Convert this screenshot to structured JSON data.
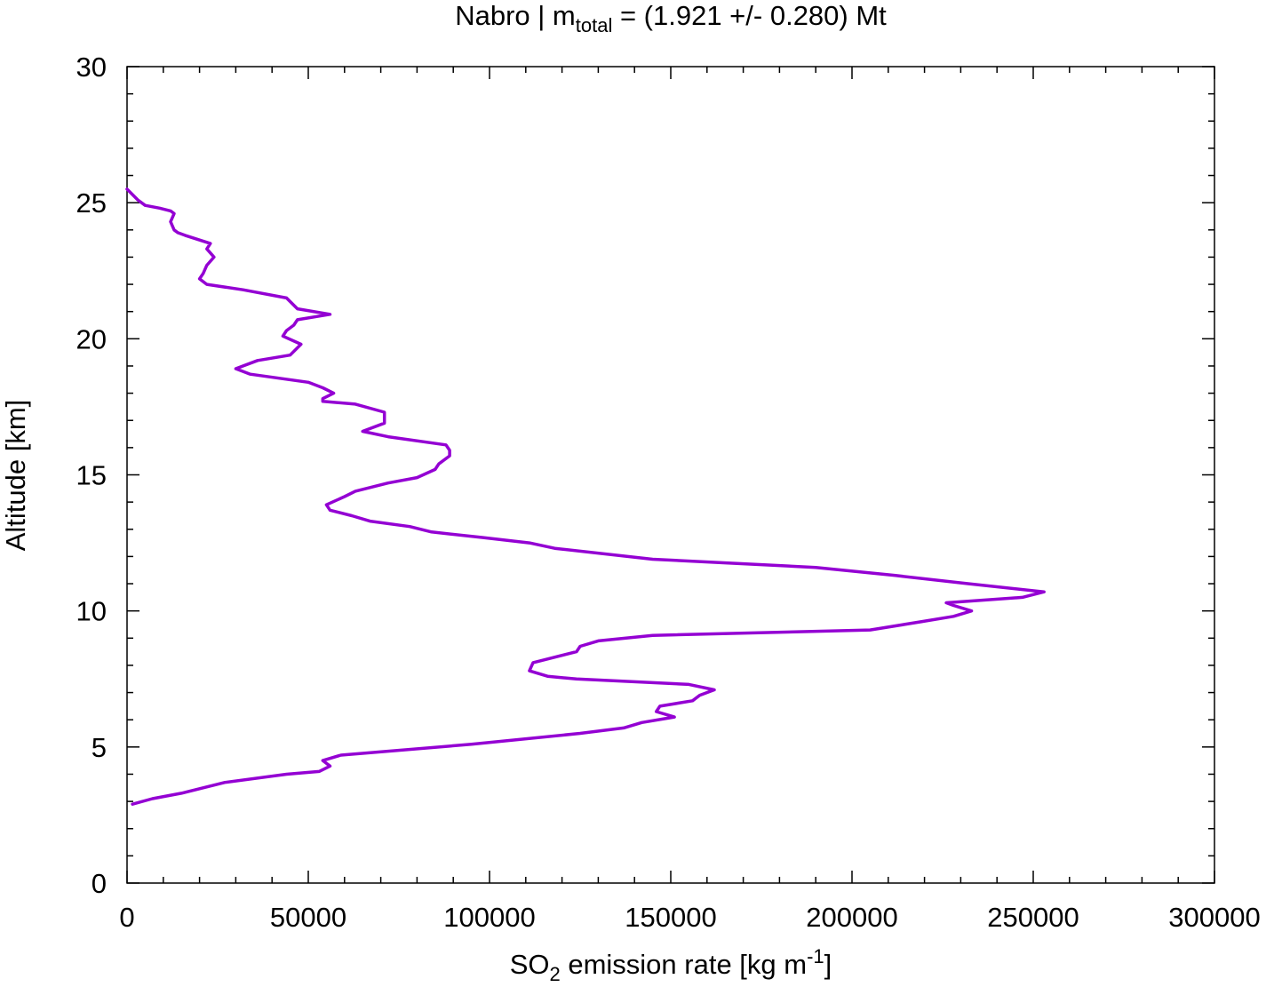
{
  "chart_data": {
    "type": "line",
    "title": {
      "prefix": "Nabro | m",
      "sub": "total",
      "suffix": " = (1.921 +/- 0.280) Mt"
    },
    "xlabel": {
      "pre": "SO",
      "sub": "2",
      "mid": " emission rate [kg m",
      "sup": "-1",
      "post": "]"
    },
    "ylabel": "Altitude [km]",
    "xlim": [
      0,
      300000
    ],
    "ylim": [
      0,
      30
    ],
    "xticks": [
      0,
      50000,
      100000,
      150000,
      200000,
      250000,
      300000
    ],
    "xtick_labels": [
      "0",
      "50000",
      "100000",
      "150000",
      "200000",
      "250000",
      "300000"
    ],
    "yticks": [
      0,
      5,
      10,
      15,
      20,
      25,
      30
    ],
    "ytick_labels": [
      "0",
      "5",
      "10",
      "15",
      "20",
      "25",
      "30"
    ],
    "grid": false,
    "legend": "none",
    "series": [
      {
        "color": "#9400d3",
        "points": [
          [
            1500,
            2.9
          ],
          [
            7000,
            3.1
          ],
          [
            15000,
            3.3
          ],
          [
            27000,
            3.7
          ],
          [
            44000,
            4.0
          ],
          [
            53000,
            4.1
          ],
          [
            56000,
            4.3
          ],
          [
            54000,
            4.5
          ],
          [
            59000,
            4.7
          ],
          [
            95000,
            5.1
          ],
          [
            125000,
            5.5
          ],
          [
            137000,
            5.7
          ],
          [
            142000,
            5.9
          ],
          [
            151000,
            6.1
          ],
          [
            146000,
            6.3
          ],
          [
            147000,
            6.5
          ],
          [
            156000,
            6.7
          ],
          [
            158000,
            6.9
          ],
          [
            162000,
            7.1
          ],
          [
            155000,
            7.3
          ],
          [
            124000,
            7.5
          ],
          [
            116000,
            7.6
          ],
          [
            111000,
            7.8
          ],
          [
            112000,
            8.1
          ],
          [
            124000,
            8.5
          ],
          [
            125000,
            8.7
          ],
          [
            130000,
            8.9
          ],
          [
            145000,
            9.1
          ],
          [
            205000,
            9.3
          ],
          [
            219000,
            9.6
          ],
          [
            228000,
            9.8
          ],
          [
            233000,
            10.0
          ],
          [
            228000,
            10.2
          ],
          [
            226000,
            10.3
          ],
          [
            247000,
            10.5
          ],
          [
            253000,
            10.7
          ],
          [
            232000,
            11.0
          ],
          [
            212000,
            11.3
          ],
          [
            190000,
            11.6
          ],
          [
            145000,
            11.9
          ],
          [
            118000,
            12.3
          ],
          [
            111000,
            12.5
          ],
          [
            98000,
            12.7
          ],
          [
            84000,
            12.9
          ],
          [
            78000,
            13.1
          ],
          [
            67000,
            13.3
          ],
          [
            62000,
            13.5
          ],
          [
            56000,
            13.7
          ],
          [
            55000,
            13.9
          ],
          [
            60000,
            14.2
          ],
          [
            63000,
            14.4
          ],
          [
            72000,
            14.7
          ],
          [
            80000,
            14.9
          ],
          [
            85000,
            15.2
          ],
          [
            86000,
            15.4
          ],
          [
            89000,
            15.7
          ],
          [
            89000,
            15.9
          ],
          [
            88000,
            16.1
          ],
          [
            72000,
            16.4
          ],
          [
            65000,
            16.6
          ],
          [
            71000,
            16.9
          ],
          [
            71000,
            17.1
          ],
          [
            71000,
            17.3
          ],
          [
            63000,
            17.6
          ],
          [
            54000,
            17.7
          ],
          [
            54000,
            17.8
          ],
          [
            57000,
            18.0
          ],
          [
            54000,
            18.2
          ],
          [
            50000,
            18.4
          ],
          [
            34000,
            18.7
          ],
          [
            30000,
            18.9
          ],
          [
            36000,
            19.2
          ],
          [
            45000,
            19.4
          ],
          [
            48000,
            19.8
          ],
          [
            43000,
            20.1
          ],
          [
            44000,
            20.3
          ],
          [
            46000,
            20.5
          ],
          [
            47000,
            20.7
          ],
          [
            56000,
            20.9
          ],
          [
            47000,
            21.1
          ],
          [
            44000,
            21.5
          ],
          [
            32000,
            21.8
          ],
          [
            22000,
            22.0
          ],
          [
            20000,
            22.2
          ],
          [
            21000,
            22.4
          ],
          [
            22000,
            22.7
          ],
          [
            24000,
            23.0
          ],
          [
            22000,
            23.3
          ],
          [
            23000,
            23.5
          ],
          [
            16000,
            23.8
          ],
          [
            14000,
            23.9
          ],
          [
            13000,
            24.0
          ],
          [
            12000,
            24.3
          ],
          [
            13000,
            24.6
          ],
          [
            12000,
            24.7
          ],
          [
            9000,
            24.8
          ],
          [
            5000,
            24.9
          ],
          [
            3000,
            25.1
          ],
          [
            1500,
            25.3
          ],
          [
            0,
            25.5
          ]
        ]
      }
    ]
  }
}
